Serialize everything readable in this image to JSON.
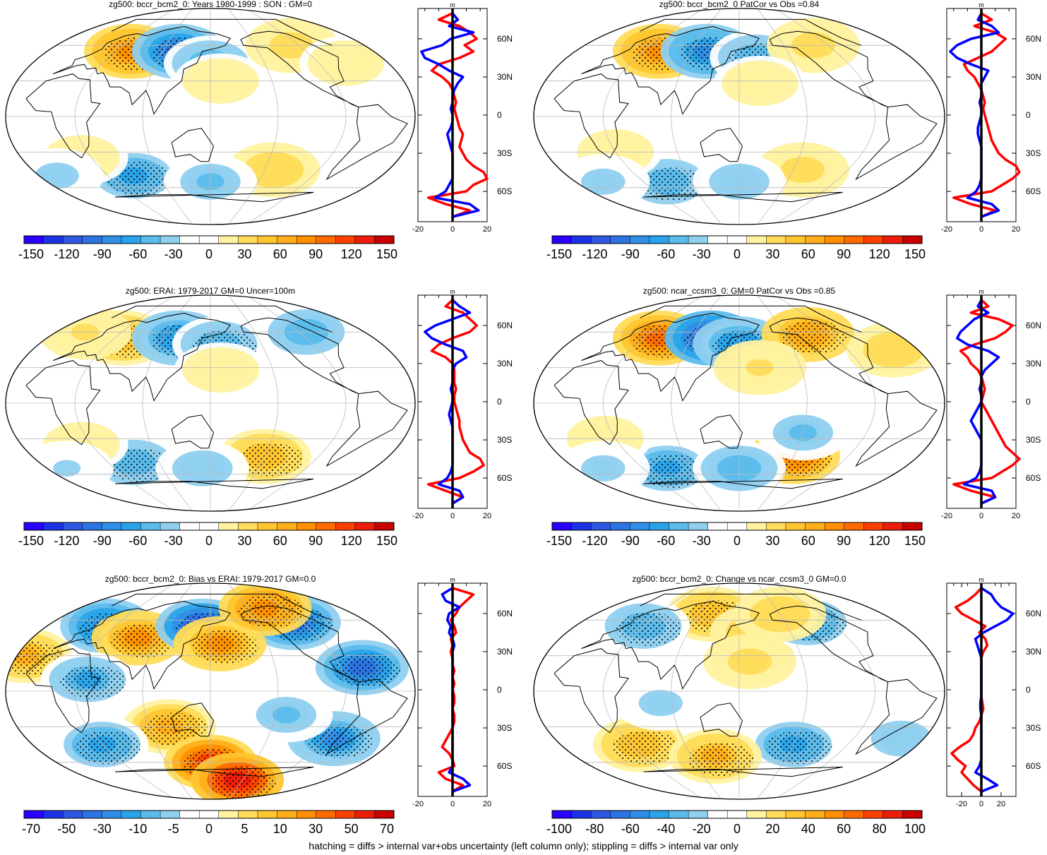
{
  "footer": "hatching = diffs > internal var+obs uncertainty (left column only); stippling = diffs > internal var only",
  "palette": [
    "#2a00ff",
    "#1a33e6",
    "#2f58e2",
    "#2c73e4",
    "#2f8ee6",
    "#2aa3ea",
    "#5bbcec",
    "#8fd0f0",
    "#ffffff",
    "#ffffff",
    "#fff2a0",
    "#ffdc5a",
    "#ffc630",
    "#ffaf1a",
    "#ff9000",
    "#ff6a00",
    "#ff4000",
    "#ee1c0a",
    "#c90000"
  ],
  "colors": {
    "land": "#000000",
    "grid": "#bbbbbb",
    "profile_blue": "#0000ff",
    "profile_red": "#ff0000",
    "zero_line": "#000000"
  },
  "chart_data": [
    {
      "type": "heatmap",
      "title": "zg500: bccr_bcm2_0: Years 1980-1999 : SON : GM=0",
      "colorbar": {
        "labels": [
          "-150",
          "-120",
          "-90",
          "-60",
          "-30",
          "0",
          "30",
          "60",
          "90",
          "120",
          "150"
        ]
      },
      "profile": {
        "xticks": [
          "-20",
          "0",
          "20"
        ],
        "xlim": [
          -20,
          20
        ],
        "units": "m",
        "yticks": [
          "60N",
          "30N",
          "0",
          "30S",
          "60S"
        ],
        "lat": [
          80,
          75,
          70,
          65,
          60,
          55,
          50,
          45,
          40,
          35,
          30,
          25,
          20,
          15,
          10,
          5,
          0,
          -5,
          -10,
          -15,
          -20,
          -25,
          -30,
          -35,
          -40,
          -45,
          -50,
          -55,
          -60,
          -65,
          -70,
          -75,
          -80
        ],
        "blue": [
          0,
          3,
          -2,
          12,
          -1,
          -6,
          -18,
          -16,
          -8,
          -2,
          6,
          3,
          1,
          0,
          0,
          -1,
          0,
          0,
          -1,
          -3,
          -2,
          -1,
          0,
          0,
          0,
          0,
          0,
          -2,
          -4,
          -10,
          10,
          15,
          0
        ],
        "red": [
          0,
          -8,
          4,
          10,
          14,
          7,
          12,
          4,
          -8,
          -12,
          -6,
          -2,
          0,
          1,
          2,
          1,
          2,
          3,
          4,
          6,
          5,
          4,
          6,
          8,
          12,
          18,
          20,
          12,
          8,
          -14,
          -4,
          10,
          0
        ]
      },
      "blobs": [
        {
          "lon": 50,
          "lat": 55,
          "v": 95
        },
        {
          "lon": 110,
          "lat": 55,
          "v": -105
        },
        {
          "lon": 150,
          "lat": 45,
          "v": -55
        },
        {
          "lon": -100,
          "lat": 60,
          "v": 40
        },
        {
          "lon": 160,
          "lat": 30,
          "v": 25
        },
        {
          "lon": -60,
          "lat": 45,
          "v": 20
        },
        {
          "lon": -140,
          "lat": -45,
          "v": 45
        },
        {
          "lon": 60,
          "lat": -50,
          "v": -70
        },
        {
          "lon": 150,
          "lat": -55,
          "v": -50
        },
        {
          "lon": 20,
          "lat": -35,
          "v": 25
        },
        {
          "lon": -30,
          "lat": -50,
          "v": -40
        }
      ]
    },
    {
      "type": "heatmap",
      "title": "zg500: bccr_bcm2_0 PatCor vs Obs =0.84",
      "colorbar": {
        "labels": [
          "-150",
          "-120",
          "-90",
          "-60",
          "-30",
          "0",
          "30",
          "60",
          "90",
          "120",
          "150"
        ]
      },
      "profile": {
        "xticks": [
          "-20",
          "0",
          "20"
        ],
        "xlim": [
          -20,
          20
        ],
        "units": "m",
        "yticks": [
          "60N",
          "30N",
          "0",
          "30S",
          "60S"
        ],
        "lat": [
          80,
          75,
          70,
          65,
          60,
          55,
          50,
          45,
          40,
          35,
          30,
          25,
          20,
          15,
          10,
          5,
          0,
          -5,
          -10,
          -15,
          -20,
          -25,
          -30,
          -35,
          -40,
          -45,
          -50,
          -55,
          -60,
          -65,
          -70,
          -75,
          -80
        ],
        "blue": [
          0,
          -2,
          6,
          10,
          -6,
          -14,
          -18,
          -14,
          -6,
          4,
          2,
          0,
          0,
          0,
          -1,
          0,
          0,
          -1,
          -2,
          -2,
          -1,
          0,
          0,
          0,
          0,
          0,
          0,
          -1,
          -3,
          -8,
          6,
          10,
          0
        ],
        "red": [
          0,
          6,
          -4,
          8,
          14,
          10,
          6,
          -2,
          -10,
          -8,
          -4,
          -2,
          0,
          1,
          2,
          1,
          2,
          3,
          4,
          5,
          6,
          8,
          10,
          14,
          20,
          22,
          18,
          12,
          6,
          -16,
          -6,
          8,
          0
        ]
      },
      "blobs": [
        {
          "lon": 50,
          "lat": 55,
          "v": 90
        },
        {
          "lon": 110,
          "lat": 55,
          "v": -90
        },
        {
          "lon": 170,
          "lat": 50,
          "v": -60
        },
        {
          "lon": -110,
          "lat": 60,
          "v": 35
        },
        {
          "lon": 170,
          "lat": 28,
          "v": 25
        },
        {
          "lon": -140,
          "lat": -45,
          "v": 40
        },
        {
          "lon": 60,
          "lat": -55,
          "v": -60
        },
        {
          "lon": 150,
          "lat": -55,
          "v": -45
        },
        {
          "lon": 30,
          "lat": -30,
          "v": 20
        },
        {
          "lon": -20,
          "lat": -55,
          "v": -40
        }
      ]
    },
    {
      "type": "heatmap",
      "title": "zg500: ERAI: 1979-2017 GM=0 Uncer=100m",
      "colorbar": {
        "labels": [
          "-150",
          "-120",
          "-90",
          "-60",
          "-30",
          "0",
          "30",
          "60",
          "90",
          "120",
          "150"
        ]
      },
      "profile": {
        "xticks": [
          "-20",
          "0",
          "20"
        ],
        "xlim": [
          -20,
          20
        ],
        "units": "m",
        "yticks": [
          "60N",
          "30N",
          "0",
          "30S",
          "60S"
        ],
        "lat": [
          80,
          75,
          70,
          65,
          60,
          55,
          50,
          45,
          40,
          35,
          30,
          25,
          20,
          15,
          10,
          5,
          0,
          -5,
          -10,
          -15,
          -20,
          -25,
          -30,
          -35,
          -40,
          -45,
          -50,
          -55,
          -60,
          -65,
          -70,
          -75,
          -80
        ],
        "blue": [
          0,
          4,
          10,
          0,
          -10,
          -16,
          -12,
          -4,
          6,
          8,
          2,
          0,
          0,
          0,
          -1,
          0,
          0,
          -1,
          -2,
          -1,
          0,
          0,
          0,
          0,
          0,
          0,
          0,
          -1,
          -3,
          -8,
          4,
          6,
          0
        ],
        "red": [
          0,
          -4,
          6,
          10,
          14,
          10,
          0,
          -8,
          -12,
          -4,
          0,
          1,
          1,
          1,
          2,
          1,
          1,
          2,
          3,
          4,
          4,
          5,
          6,
          8,
          10,
          16,
          18,
          12,
          4,
          -14,
          -4,
          6,
          0
        ]
      },
      "blobs": [
        {
          "lon": 40,
          "lat": 55,
          "v": 60
        },
        {
          "lon": 110,
          "lat": 55,
          "v": -80
        },
        {
          "lon": 160,
          "lat": 50,
          "v": -60
        },
        {
          "lon": -80,
          "lat": 60,
          "v": -55
        },
        {
          "lon": -20,
          "lat": 60,
          "v": 30
        },
        {
          "lon": 160,
          "lat": 28,
          "v": 20
        },
        {
          "lon": -150,
          "lat": -45,
          "v": 60
        },
        {
          "lon": 60,
          "lat": -50,
          "v": -60
        },
        {
          "lon": 140,
          "lat": -55,
          "v": -45
        },
        {
          "lon": 20,
          "lat": -35,
          "v": 25
        },
        {
          "lon": -30,
          "lat": -55,
          "v": -30
        }
      ]
    },
    {
      "type": "heatmap",
      "title": "zg500: ncar_ccsm3_0: GM=0 PatCor vs Obs =0.85",
      "colorbar": {
        "labels": [
          "-150",
          "-120",
          "-90",
          "-60",
          "-30",
          "0",
          "30",
          "60",
          "90",
          "120",
          "150"
        ]
      },
      "profile": {
        "xticks": [
          "-20",
          "0",
          "20"
        ],
        "xlim": [
          -20,
          20
        ],
        "units": "m",
        "yticks": [
          "60N",
          "30N",
          "0",
          "30S",
          "60S"
        ],
        "lat": [
          80,
          75,
          70,
          65,
          60,
          55,
          50,
          45,
          40,
          35,
          30,
          25,
          20,
          15,
          10,
          5,
          0,
          -5,
          -10,
          -15,
          -20,
          -25,
          -30,
          -35,
          -40,
          -45,
          -50,
          -55,
          -60,
          -65,
          -70,
          -75,
          -80
        ],
        "blue": [
          0,
          -2,
          4,
          -4,
          -8,
          -12,
          -14,
          -8,
          4,
          10,
          6,
          2,
          0,
          0,
          -1,
          0,
          0,
          -2,
          -4,
          -6,
          -4,
          -2,
          0,
          0,
          0,
          0,
          0,
          -1,
          -3,
          -10,
          6,
          8,
          0
        ],
        "red": [
          0,
          4,
          -6,
          10,
          18,
          14,
          8,
          -4,
          -12,
          -8,
          -6,
          -2,
          0,
          1,
          2,
          1,
          0,
          2,
          4,
          6,
          8,
          10,
          12,
          14,
          18,
          22,
          18,
          12,
          6,
          -16,
          -6,
          8,
          0
        ]
      },
      "blobs": [
        {
          "lon": 50,
          "lat": 55,
          "v": 110
        },
        {
          "lon": 115,
          "lat": 55,
          "v": -135
        },
        {
          "lon": 150,
          "lat": 50,
          "v": -80
        },
        {
          "lon": -120,
          "lat": 58,
          "v": 80
        },
        {
          "lon": -40,
          "lat": 45,
          "v": 45
        },
        {
          "lon": 170,
          "lat": 30,
          "v": 30
        },
        {
          "lon": -150,
          "lat": -45,
          "v": 100
        },
        {
          "lon": -150,
          "lat": -25,
          "v": -50
        },
        {
          "lon": 60,
          "lat": -55,
          "v": -70
        },
        {
          "lon": 150,
          "lat": -55,
          "v": -55
        },
        {
          "lon": 20,
          "lat": -30,
          "v": 25
        },
        {
          "lon": -20,
          "lat": -55,
          "v": -40
        }
      ]
    },
    {
      "type": "heatmap",
      "title": "zg500: bccr_bcm2_0: Bias vs ERAI: 1979-2017  GM=0.0",
      "colorbar": {
        "labels": [
          "-70",
          "-50",
          "-30",
          "-10",
          "-5",
          "0",
          "5",
          "10",
          "30",
          "50",
          "70"
        ]
      },
      "profile": {
        "xticks": [
          "-20",
          "0",
          "20"
        ],
        "xlim": [
          -20,
          20
        ],
        "units": "m",
        "yticks": [
          "60N",
          "30N",
          "0",
          "30S",
          "60S"
        ],
        "lat": [
          80,
          75,
          70,
          65,
          60,
          55,
          50,
          45,
          40,
          35,
          30,
          25,
          20,
          15,
          10,
          5,
          0,
          -5,
          -10,
          -15,
          -20,
          -25,
          -30,
          -35,
          -40,
          -45,
          -50,
          -55,
          -60,
          -65,
          -70,
          -75,
          -80
        ],
        "blue": [
          0,
          -6,
          -4,
          4,
          -2,
          -3,
          -1,
          -2,
          0,
          1,
          0,
          0,
          0,
          0,
          0,
          0,
          0,
          0,
          0,
          0,
          0,
          0,
          0,
          0,
          0,
          0,
          0,
          0,
          0,
          -2,
          6,
          10,
          0
        ],
        "red": [
          0,
          12,
          8,
          4,
          2,
          -1,
          1,
          2,
          -1,
          0,
          -1,
          0,
          0,
          1,
          0,
          1,
          0,
          1,
          1,
          0,
          1,
          1,
          0,
          -2,
          -4,
          -6,
          -2,
          0,
          1,
          -8,
          -4,
          6,
          0
        ]
      },
      "blobs": [
        {
          "lon": -100,
          "lat": 58,
          "v": -55
        },
        {
          "lon": -70,
          "lat": 20,
          "v": -50
        },
        {
          "lon": 20,
          "lat": 55,
          "v": -45
        },
        {
          "lon": 70,
          "lat": 45,
          "v": 40
        },
        {
          "lon": 140,
          "lat": 55,
          "v": -60
        },
        {
          "lon": 160,
          "lat": 40,
          "v": 40
        },
        {
          "lon": -30,
          "lat": 30,
          "v": 30
        },
        {
          "lon": 40,
          "lat": 10,
          "v": -30
        },
        {
          "lon": 110,
          "lat": -30,
          "v": 35
        },
        {
          "lon": 150,
          "lat": -60,
          "v": 60
        },
        {
          "lon": -160,
          "lat": -75,
          "v": 70
        },
        {
          "lon": -80,
          "lat": -40,
          "v": -40
        },
        {
          "lon": 30,
          "lat": -45,
          "v": -35
        },
        {
          "lon": -140,
          "lat": -20,
          "v": -25
        },
        {
          "lon": -120,
          "lat": 70,
          "v": 45
        }
      ]
    },
    {
      "type": "heatmap",
      "title": "zg500: bccr_bcm2_0: Change vs ncar_ccsm3_0 GM=0.0",
      "colorbar": {
        "labels": [
          "-100",
          "-80",
          "-60",
          "-40",
          "-20",
          "0",
          "20",
          "40",
          "60",
          "80",
          "100"
        ]
      },
      "profile": {
        "xticks": [
          "-20",
          "0",
          "20"
        ],
        "xlim": [
          -35,
          35
        ],
        "units": "m",
        "yticks": [
          "60N",
          "30N",
          "0",
          "30S",
          "60S"
        ],
        "lat": [
          80,
          75,
          70,
          65,
          60,
          55,
          50,
          45,
          40,
          35,
          30,
          25,
          20,
          15,
          10,
          5,
          0,
          -5,
          -10,
          -15,
          -20,
          -25,
          -30,
          -35,
          -40,
          -45,
          -50,
          -55,
          -60,
          -65,
          -70,
          -75,
          -80
        ],
        "blue": [
          0,
          10,
          14,
          20,
          32,
          26,
          14,
          2,
          -6,
          -4,
          -2,
          0,
          0,
          0,
          0,
          0,
          0,
          0,
          -1,
          -1,
          0,
          0,
          0,
          0,
          0,
          0,
          0,
          0,
          -2,
          -6,
          6,
          16,
          0
        ],
        "red": [
          0,
          -6,
          -14,
          -26,
          -20,
          -8,
          4,
          -2,
          4,
          6,
          2,
          0,
          0,
          0,
          0,
          0,
          0,
          0,
          1,
          2,
          0,
          -2,
          -6,
          -8,
          -12,
          -22,
          -30,
          -24,
          -16,
          -20,
          -14,
          -8,
          0
        ]
      },
      "blobs": [
        {
          "lon": 110,
          "lat": 65,
          "v": 40
        },
        {
          "lon": 170,
          "lat": 50,
          "v": 30
        },
        {
          "lon": -120,
          "lat": 58,
          "v": -50
        },
        {
          "lon": -150,
          "lat": 65,
          "v": 30
        },
        {
          "lon": 30,
          "lat": 55,
          "v": -40
        },
        {
          "lon": 160,
          "lat": 25,
          "v": 25
        },
        {
          "lon": -150,
          "lat": -45,
          "v": -50
        },
        {
          "lon": 40,
          "lat": -45,
          "v": 40
        },
        {
          "lon": 120,
          "lat": -55,
          "v": 45
        },
        {
          "lon": -40,
          "lat": -40,
          "v": -30
        },
        {
          "lon": 80,
          "lat": -10,
          "v": -25
        }
      ]
    }
  ]
}
